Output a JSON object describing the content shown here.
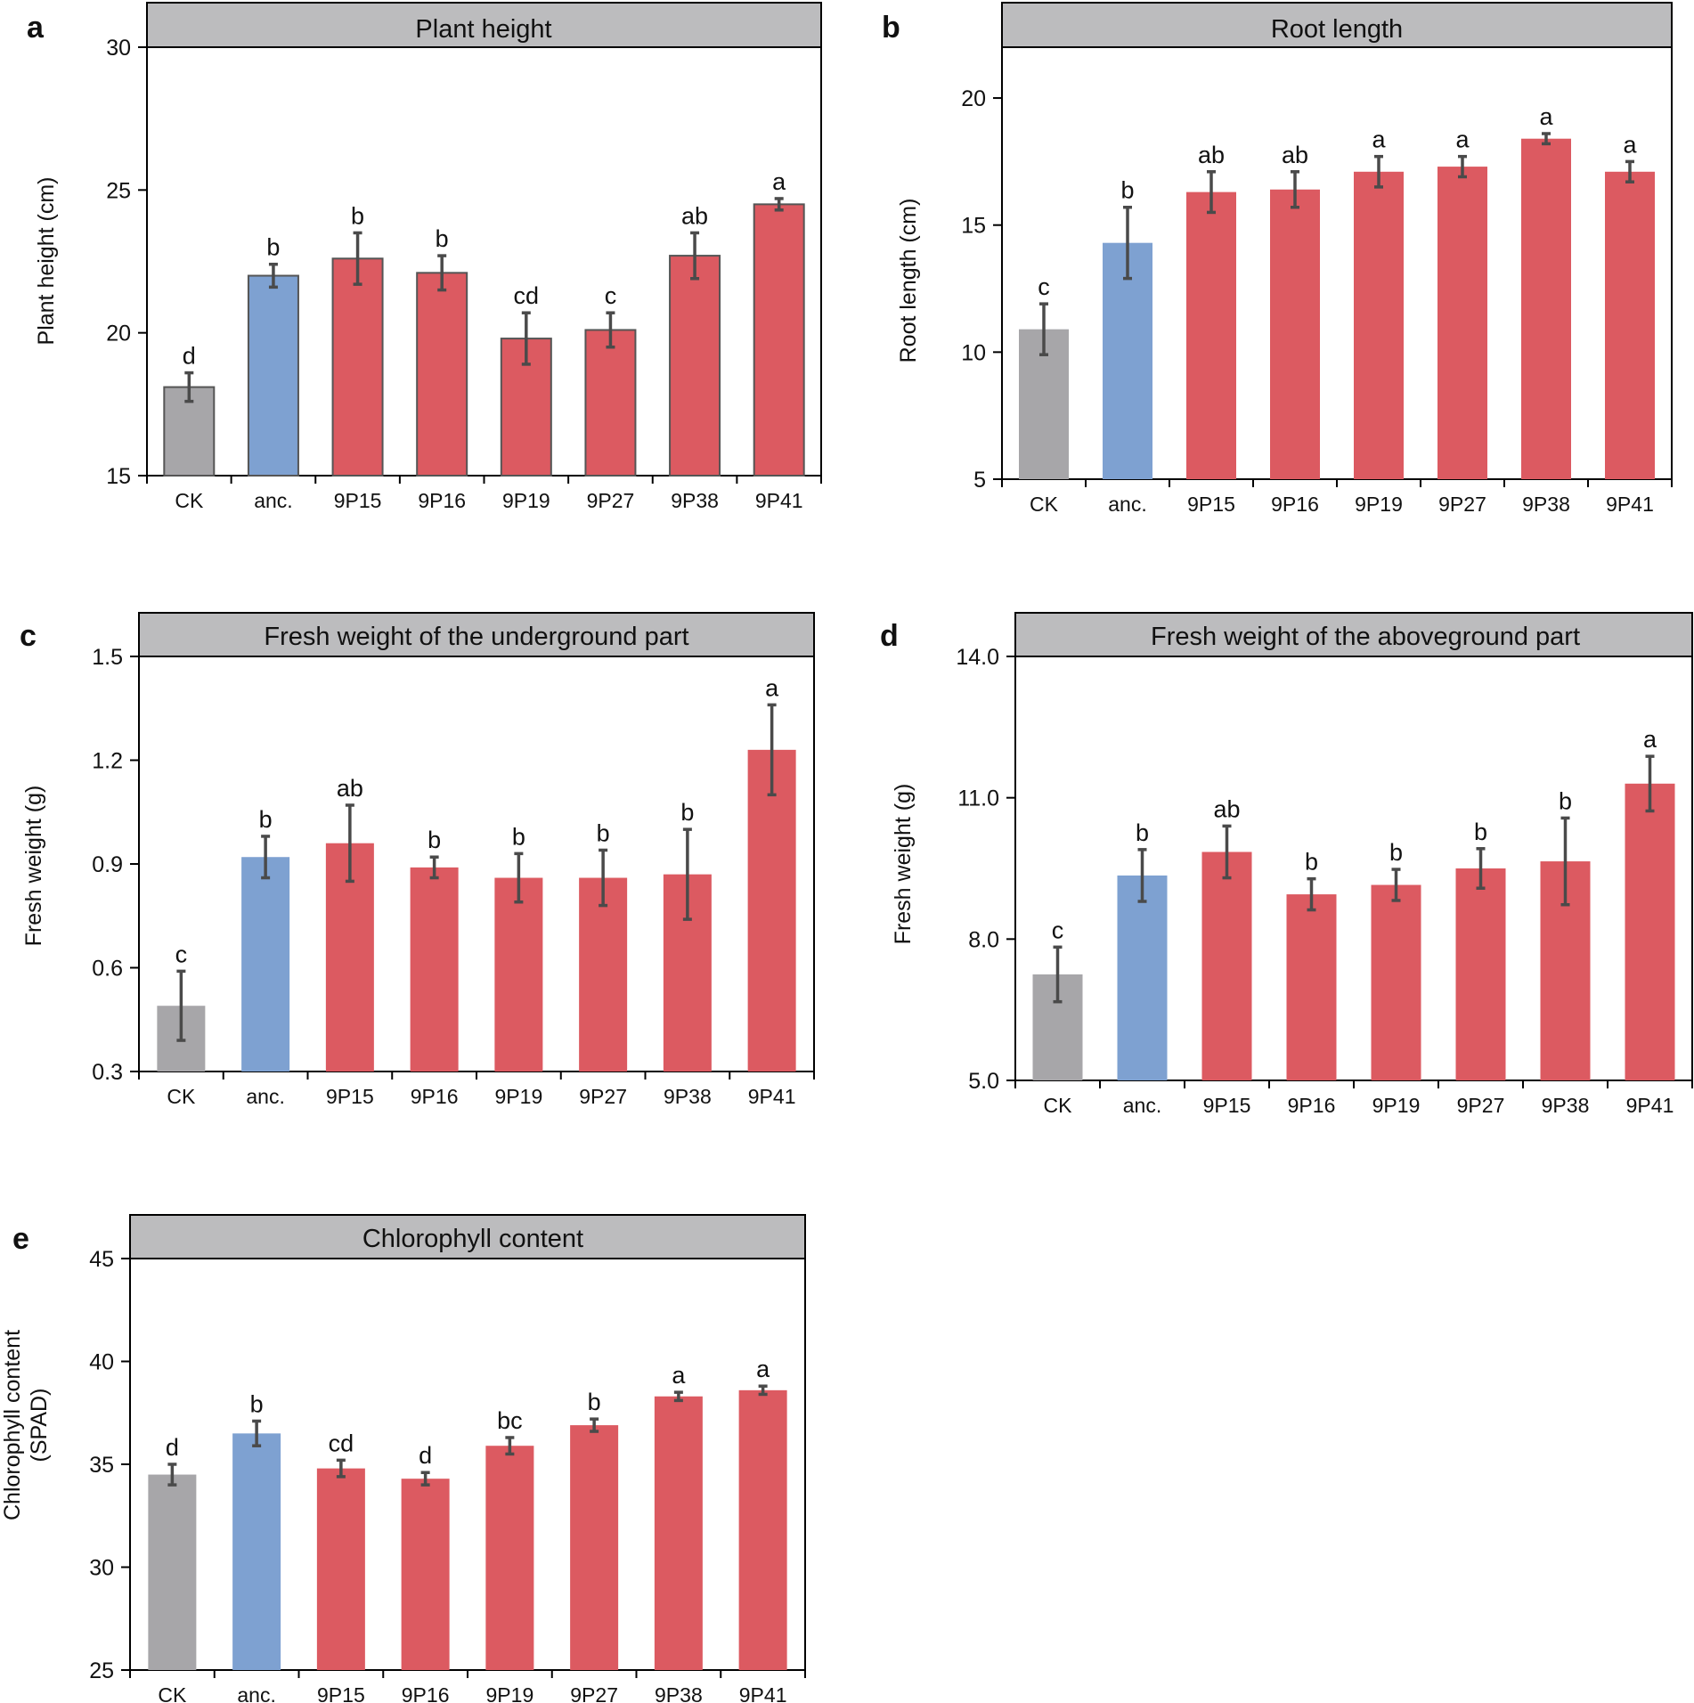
{
  "colors": {
    "ck": "#a7a6a9",
    "anc": "#7ea1d1",
    "strain": "#dc5a61",
    "header": "#bcbcbe",
    "error": "#4a4a4a"
  },
  "categories": [
    "CK",
    "anc.",
    "9P15",
    "9P16",
    "9P19",
    "9P27",
    "9P38",
    "9P41"
  ],
  "chart_data": [
    {
      "panel": "a",
      "type": "bar",
      "title": "Plant height",
      "xlabel": "",
      "ylabel": "Plant height (cm)",
      "ylim": [
        15,
        30
      ],
      "yticks": [
        "15",
        "20",
        "25",
        "30"
      ],
      "categories": [
        "CK",
        "anc.",
        "9P15",
        "9P16",
        "9P19",
        "9P27",
        "9P38",
        "9P41"
      ],
      "values": [
        18.1,
        22.0,
        22.6,
        22.1,
        19.8,
        20.1,
        22.7,
        24.5
      ],
      "errors": [
        0.5,
        0.4,
        0.9,
        0.6,
        0.9,
        0.6,
        0.8,
        0.2
      ],
      "letters": [
        "d",
        "b",
        "b",
        "b",
        "cd",
        "c",
        "ab",
        "a"
      ],
      "bar_outline": true
    },
    {
      "panel": "b",
      "type": "bar",
      "title": "Root length",
      "xlabel": "",
      "ylabel": "Root length (cm)",
      "ylim": [
        5,
        22
      ],
      "yticks": [
        "5",
        "10",
        "15",
        "20"
      ],
      "categories": [
        "CK",
        "anc.",
        "9P15",
        "9P16",
        "9P19",
        "9P27",
        "9P38",
        "9P41"
      ],
      "values": [
        10.9,
        14.3,
        16.3,
        16.4,
        17.1,
        17.3,
        18.4,
        17.1
      ],
      "errors": [
        1.0,
        1.4,
        0.8,
        0.7,
        0.6,
        0.4,
        0.2,
        0.4
      ],
      "letters": [
        "c",
        "b",
        "ab",
        "ab",
        "a",
        "a",
        "a",
        "a"
      ],
      "bar_outline": false
    },
    {
      "panel": "c",
      "type": "bar",
      "title": "Fresh weight of the underground part",
      "xlabel": "",
      "ylabel": "Fresh weight (g)",
      "ylim": [
        0.3,
        1.5
      ],
      "yticks": [
        "0.3",
        "0.6",
        "0.9",
        "1.2",
        "1.5"
      ],
      "categories": [
        "CK",
        "anc.",
        "9P15",
        "9P16",
        "9P19",
        "9P27",
        "9P38",
        "9P41"
      ],
      "values": [
        0.49,
        0.92,
        0.96,
        0.89,
        0.86,
        0.86,
        0.87,
        1.23
      ],
      "errors": [
        0.1,
        0.06,
        0.11,
        0.03,
        0.07,
        0.08,
        0.13,
        0.13
      ],
      "letters": [
        "c",
        "b",
        "ab",
        "b",
        "b",
        "b",
        "b",
        "a"
      ],
      "bar_outline": false
    },
    {
      "panel": "d",
      "type": "bar",
      "title": "Fresh weight of the aboveground part",
      "xlabel": "",
      "ylabel": "Fresh weight (g)",
      "ylim": [
        5.0,
        14.0
      ],
      "yticks": [
        "5.0",
        "8.0",
        "11.0",
        "14.0"
      ],
      "categories": [
        "CK",
        "anc.",
        "9P15",
        "9P16",
        "9P19",
        "9P27",
        "9P38",
        "9P41"
      ],
      "values": [
        7.25,
        9.35,
        9.85,
        8.95,
        9.15,
        9.5,
        9.65,
        11.3
      ],
      "errors": [
        0.58,
        0.55,
        0.55,
        0.33,
        0.33,
        0.42,
        0.92,
        0.58
      ],
      "letters": [
        "c",
        "b",
        "ab",
        "b",
        "b",
        "b",
        "b",
        "a"
      ],
      "bar_outline": false
    },
    {
      "panel": "e",
      "type": "bar",
      "title": "Chlorophyll content",
      "xlabel": "",
      "ylabel": "Chlorophyll content (SPAD)",
      "ylabel_lines": [
        "Chlorophyll content",
        "(SPAD)"
      ],
      "ylim": [
        25,
        45
      ],
      "yticks": [
        "25",
        "30",
        "35",
        "40",
        "45"
      ],
      "categories": [
        "CK",
        "anc.",
        "9P15",
        "9P16",
        "9P19",
        "9P27",
        "9P38",
        "9P41"
      ],
      "values": [
        34.5,
        36.5,
        34.8,
        34.3,
        35.9,
        36.9,
        38.3,
        38.6
      ],
      "errors": [
        0.5,
        0.6,
        0.4,
        0.3,
        0.4,
        0.3,
        0.2,
        0.2
      ],
      "letters": [
        "d",
        "b",
        "cd",
        "d",
        "bc",
        "b",
        "a",
        "a"
      ],
      "bar_outline": false
    }
  ]
}
